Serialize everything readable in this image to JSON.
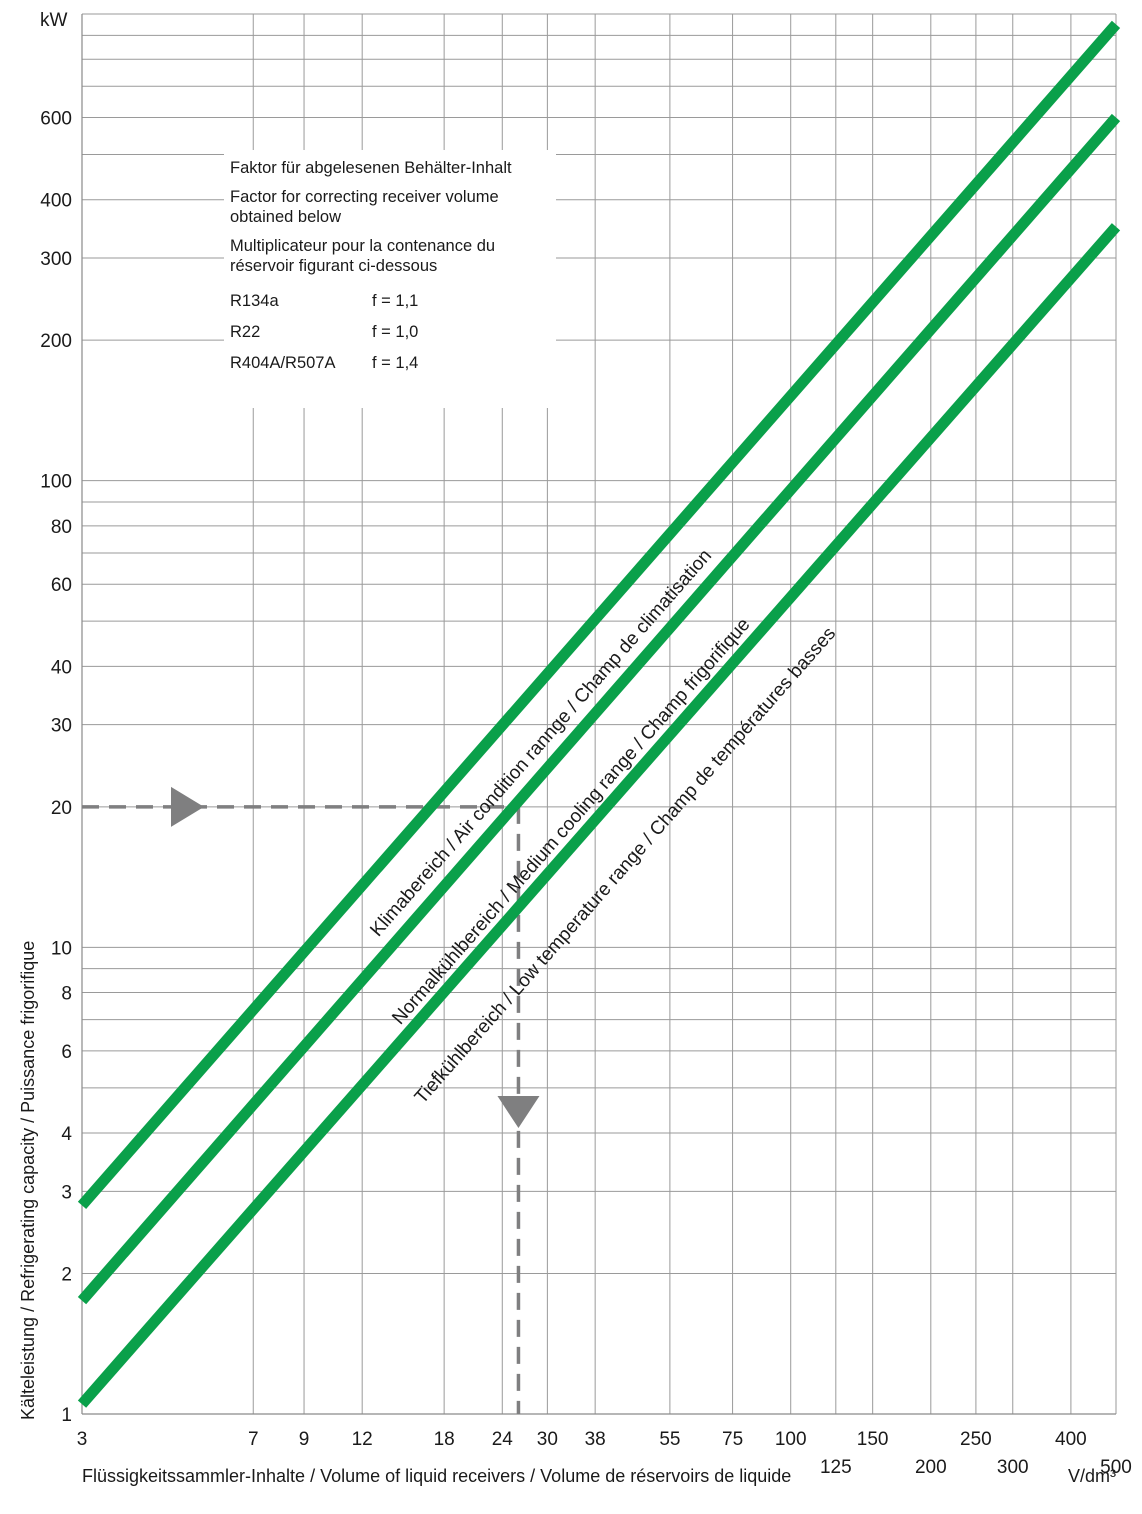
{
  "chart_data": {
    "type": "line",
    "x_scale": "log",
    "y_scale": "log",
    "xlim": [
      3,
      500
    ],
    "ylim": [
      1,
      1000
    ],
    "y_unit_label": "kW",
    "x_unit_label": "V/dm³",
    "ylabel": "Kälteleistung  /  Refrigerating capacity  /  Puissance frigorifique",
    "xlabel": "Flüssigkeitssammler-Inhalte  /  Volume of liquid receivers  /  Volume de réservoirs de liquide",
    "y_ticks": [
      "1",
      "2",
      "3",
      "4",
      "6",
      "8",
      "10",
      "20",
      "30",
      "40",
      "60",
      "80",
      "100",
      "200",
      "300",
      "400",
      "600"
    ],
    "x_ticks_row1": [
      "3",
      "7",
      "9",
      "12",
      "18",
      "24",
      "30",
      "38",
      "55",
      "75",
      "100",
      "150",
      "250",
      "400"
    ],
    "x_ticks_row2": [
      "125",
      "200",
      "300",
      "500"
    ],
    "grid": true,
    "series": [
      {
        "name": "Klimabereich / Air condition rannge / Champ de climatisation",
        "x": [
          3,
          500
        ],
        "y": [
          2.8,
          950
        ],
        "color": "#0aa04a"
      },
      {
        "name": "Normalkühlbereich / Medium cooling range / Champ frigorifique",
        "x": [
          3,
          500
        ],
        "y": [
          1.75,
          600
        ],
        "color": "#0aa04a"
      },
      {
        "name": "Tiefkühlbereich  / Low temperature range / Champ de températures basses",
        "x": [
          3,
          500
        ],
        "y": [
          1.05,
          350
        ],
        "color": "#0aa04a"
      }
    ],
    "example_guide": {
      "y": 20,
      "x": 26,
      "color": "#7f7f80"
    }
  },
  "info_box": {
    "line_de": "Faktor für abgelesenen Behälter-Inhalt",
    "line_en": "Factor for correcting receiver volume obtained below",
    "line_fr": "Multiplicateur pour la contenance du réservoir figurant ci-dessous",
    "refrigerants": [
      {
        "name": "R134a",
        "factor": "f = 1,1"
      },
      {
        "name": "R22",
        "factor": "f = 1,0"
      },
      {
        "name": "R404A/R507A",
        "factor": "f = 1,4"
      }
    ]
  }
}
